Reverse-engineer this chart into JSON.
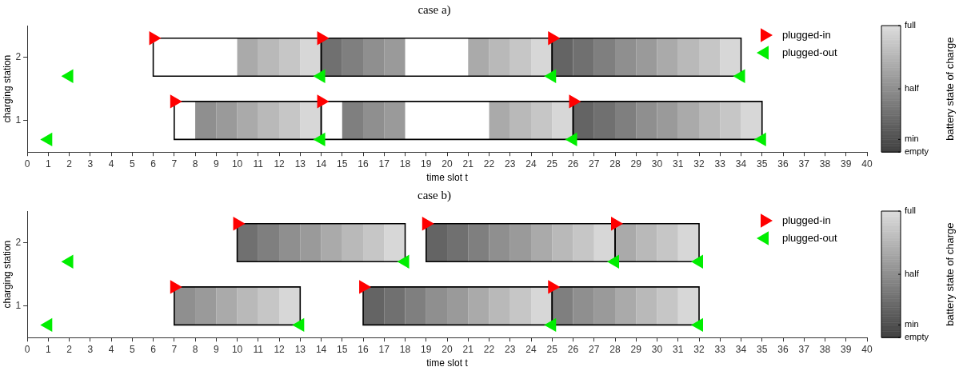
{
  "chart_data": [
    {
      "type": "bar",
      "orientation": "horizontal",
      "title": "case a)",
      "xlabel": "time slot t",
      "ylabel": "charging station",
      "clabel": "battery state of charge",
      "categories": [
        "2",
        "1"
      ],
      "xlim": [
        0,
        40
      ],
      "xticks": [
        0,
        1,
        2,
        3,
        4,
        5,
        6,
        7,
        8,
        9,
        10,
        11,
        12,
        13,
        14,
        15,
        16,
        17,
        18,
        19,
        20,
        21,
        22,
        23,
        24,
        25,
        26,
        27,
        28,
        29,
        30,
        31,
        32,
        33,
        34,
        35,
        36,
        37,
        38,
        39,
        40
      ],
      "clim": [
        0,
        1
      ],
      "cticks": [
        {
          "value": 0,
          "label": "empty"
        },
        {
          "value": 0.1,
          "label": "min"
        },
        {
          "value": 0.5,
          "label": "half"
        },
        {
          "value": 1,
          "label": "full"
        }
      ],
      "legend": "top right",
      "series": [
        {
          "base": [
            10,
            8
          ],
          "values": [
            1,
            1
          ],
          "colors": [
            "#aaaaaa",
            "#8f8f8f"
          ]
        },
        {
          "base": [
            11,
            9
          ],
          "values": [
            1,
            1
          ],
          "colors": [
            "#b9b9b9",
            "#9a9a9a"
          ]
        },
        {
          "base": [
            12,
            10
          ],
          "values": [
            1,
            1
          ],
          "colors": [
            "#c6c6c6",
            "#aaaaaa"
          ]
        },
        {
          "base": [
            13,
            11
          ],
          "values": [
            1,
            1
          ],
          "colors": [
            "#d7d7d7",
            "#b9b9b9"
          ]
        },
        {
          "base": [
            14,
            12
          ],
          "values": [
            1,
            1
          ],
          "colors": [
            "#707070",
            "#c6c6c6"
          ]
        },
        {
          "base": [
            15,
            13
          ],
          "values": [
            1,
            1
          ],
          "colors": [
            "#7f7f7f",
            "#d7d7d7"
          ]
        },
        {
          "base": [
            16,
            15
          ],
          "values": [
            1,
            1
          ],
          "colors": [
            "#8f8f8f",
            "#7f7f7f"
          ]
        },
        {
          "base": [
            17,
            16
          ],
          "values": [
            1,
            1
          ],
          "colors": [
            "#9a9a9a",
            "#8f8f8f"
          ]
        },
        {
          "base": [
            21,
            17
          ],
          "values": [
            1,
            1
          ],
          "colors": [
            "#aaaaaa",
            "#9a9a9a"
          ]
        },
        {
          "base": [
            22,
            22
          ],
          "values": [
            1,
            1
          ],
          "colors": [
            "#b9b9b9",
            "#aaaaaa"
          ]
        },
        {
          "base": [
            23,
            23
          ],
          "values": [
            1,
            1
          ],
          "colors": [
            "#c6c6c6",
            "#b9b9b9"
          ]
        },
        {
          "base": [
            24,
            24
          ],
          "values": [
            1,
            1
          ],
          "colors": [
            "#d7d7d7",
            "#c6c6c6"
          ]
        },
        {
          "base": [
            25,
            25
          ],
          "values": [
            1,
            1
          ],
          "colors": [
            "#646464",
            "#d7d7d7"
          ]
        },
        {
          "base": [
            26,
            26
          ],
          "values": [
            1,
            1
          ],
          "colors": [
            "#707070",
            "#646464"
          ]
        },
        {
          "base": [
            27,
            27
          ],
          "values": [
            1,
            1
          ],
          "colors": [
            "#7f7f7f",
            "#707070"
          ]
        },
        {
          "base": [
            28,
            28
          ],
          "values": [
            1,
            1
          ],
          "colors": [
            "#8f8f8f",
            "#7f7f7f"
          ]
        },
        {
          "base": [
            29,
            29
          ],
          "values": [
            1,
            1
          ],
          "colors": [
            "#9a9a9a",
            "#8f8f8f"
          ]
        },
        {
          "base": [
            30,
            30
          ],
          "values": [
            1,
            1
          ],
          "colors": [
            "#aaaaaa",
            "#9a9a9a"
          ]
        },
        {
          "base": [
            31,
            31
          ],
          "values": [
            1,
            1
          ],
          "colors": [
            "#b9b9b9",
            "#aaaaaa"
          ]
        },
        {
          "base": [
            32,
            32
          ],
          "values": [
            1,
            1
          ],
          "colors": [
            "#c6c6c6",
            "#b9b9b9"
          ]
        },
        {
          "base": [
            33,
            33
          ],
          "values": [
            1,
            1
          ],
          "colors": [
            "#d7d7d7",
            "#c6c6c6"
          ]
        },
        {
          "base": [
            null,
            34
          ],
          "values": [
            null,
            1
          ],
          "colors": [
            null,
            "#d7d7d7"
          ]
        },
        {
          "type": "scatter",
          "name": "plugged-in",
          "color": "#ff0000",
          "marker": "triangle",
          "x": [
            "2",
            "2",
            "2",
            "1",
            "1",
            "1"
          ],
          "values": [
            6,
            14,
            25,
            7,
            14,
            26
          ]
        },
        {
          "type": "scatter",
          "name": "plugged-out",
          "color": "#00ee00",
          "marker": "triangle",
          "x": [
            "2",
            "2",
            "2",
            "2",
            "1",
            "1",
            "1",
            "1"
          ],
          "values": [
            2,
            14,
            25,
            34,
            1,
            14,
            26,
            35
          ]
        }
      ]
    },
    {
      "type": "bar",
      "orientation": "horizontal",
      "title": "case b)",
      "xlabel": "time slot t",
      "ylabel": "charging station",
      "clabel": "battery state of charge",
      "categories": [
        "2",
        "1"
      ],
      "xlim": [
        0,
        40
      ],
      "xticks": [
        0,
        1,
        2,
        3,
        4,
        5,
        6,
        7,
        8,
        9,
        10,
        11,
        12,
        13,
        14,
        15,
        16,
        17,
        18,
        19,
        20,
        21,
        22,
        23,
        24,
        25,
        26,
        27,
        28,
        29,
        30,
        31,
        32,
        33,
        34,
        35,
        36,
        37,
        38,
        39,
        40
      ],
      "clim": [
        0,
        1
      ],
      "cticks": [
        {
          "value": 0,
          "label": "empty"
        },
        {
          "value": 0.1,
          "label": "min"
        },
        {
          "value": 0.5,
          "label": "half"
        },
        {
          "value": 1,
          "label": "full"
        }
      ],
      "legend": "top right",
      "series": [
        {
          "base": [
            10,
            7
          ],
          "values": [
            1,
            1
          ],
          "colors": [
            "#707070",
            "#8f8f8f"
          ]
        },
        {
          "base": [
            11,
            8
          ],
          "values": [
            1,
            1
          ],
          "colors": [
            "#7f7f7f",
            "#9a9a9a"
          ]
        },
        {
          "base": [
            12,
            9
          ],
          "values": [
            1,
            1
          ],
          "colors": [
            "#8f8f8f",
            "#aaaaaa"
          ]
        },
        {
          "base": [
            13,
            10
          ],
          "values": [
            1,
            1
          ],
          "colors": [
            "#9a9a9a",
            "#b9b9b9"
          ]
        },
        {
          "base": [
            14,
            11
          ],
          "values": [
            1,
            1
          ],
          "colors": [
            "#aaaaaa",
            "#c6c6c6"
          ]
        },
        {
          "base": [
            15,
            12
          ],
          "values": [
            1,
            1
          ],
          "colors": [
            "#b9b9b9",
            "#d7d7d7"
          ]
        },
        {
          "base": [
            16,
            16
          ],
          "values": [
            1,
            1
          ],
          "colors": [
            "#c6c6c6",
            "#646464"
          ]
        },
        {
          "base": [
            17,
            17
          ],
          "values": [
            1,
            1
          ],
          "colors": [
            "#d7d7d7",
            "#707070"
          ]
        },
        {
          "base": [
            19,
            18
          ],
          "values": [
            1,
            1
          ],
          "colors": [
            "#646464",
            "#7f7f7f"
          ]
        },
        {
          "base": [
            20,
            19
          ],
          "values": [
            1,
            1
          ],
          "colors": [
            "#707070",
            "#8f8f8f"
          ]
        },
        {
          "base": [
            21,
            20
          ],
          "values": [
            1,
            1
          ],
          "colors": [
            "#7f7f7f",
            "#9a9a9a"
          ]
        },
        {
          "base": [
            22,
            21
          ],
          "values": [
            1,
            1
          ],
          "colors": [
            "#8f8f8f",
            "#aaaaaa"
          ]
        },
        {
          "base": [
            23,
            22
          ],
          "values": [
            1,
            1
          ],
          "colors": [
            "#9a9a9a",
            "#b9b9b9"
          ]
        },
        {
          "base": [
            24,
            23
          ],
          "values": [
            1,
            1
          ],
          "colors": [
            "#aaaaaa",
            "#c6c6c6"
          ]
        },
        {
          "base": [
            25,
            24
          ],
          "values": [
            1,
            1
          ],
          "colors": [
            "#b9b9b9",
            "#d7d7d7"
          ]
        },
        {
          "base": [
            26,
            25
          ],
          "values": [
            1,
            1
          ],
          "colors": [
            "#c6c6c6",
            "#7f7f7f"
          ]
        },
        {
          "base": [
            27,
            26
          ],
          "values": [
            1,
            1
          ],
          "colors": [
            "#d7d7d7",
            "#8f8f8f"
          ]
        },
        {
          "base": [
            28,
            27
          ],
          "values": [
            1,
            1
          ],
          "colors": [
            "#aaaaaa",
            "#9a9a9a"
          ]
        },
        {
          "base": [
            29,
            28
          ],
          "values": [
            1,
            1
          ],
          "colors": [
            "#b9b9b9",
            "#aaaaaa"
          ]
        },
        {
          "base": [
            30,
            29
          ],
          "values": [
            1,
            1
          ],
          "colors": [
            "#c6c6c6",
            "#b9b9b9"
          ]
        },
        {
          "base": [
            31,
            30
          ],
          "values": [
            1,
            1
          ],
          "colors": [
            "#d7d7d7",
            "#c6c6c6"
          ]
        },
        {
          "base": [
            null,
            31
          ],
          "values": [
            null,
            1
          ],
          "colors": [
            null,
            "#d7d7d7"
          ]
        },
        {
          "type": "scatter",
          "name": "plugged-in",
          "color": "#ff0000",
          "marker": "triangle",
          "x": [
            "2",
            "2",
            "2",
            "1",
            "1",
            "1"
          ],
          "values": [
            10,
            19,
            28,
            7,
            16,
            25
          ]
        },
        {
          "type": "scatter",
          "name": "plugged-out",
          "color": "#00ee00",
          "marker": "triangle",
          "x": [
            "2",
            "2",
            "2",
            "2",
            "1",
            "1",
            "1",
            "1"
          ],
          "values": [
            2,
            18,
            28,
            32,
            1,
            13,
            25,
            32
          ]
        }
      ]
    }
  ]
}
